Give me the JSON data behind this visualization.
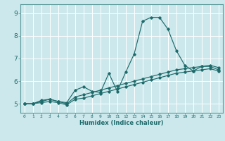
{
  "title": "",
  "xlabel": "Humidex (Indice chaleur)",
  "ylabel": "",
  "xlim": [
    -0.5,
    23.5
  ],
  "ylim": [
    4.6,
    9.4
  ],
  "bg_color": "#cce8ec",
  "grid_color": "#ffffff",
  "line_color": "#1e6b6b",
  "yticks": [
    5,
    6,
    7,
    8,
    9
  ],
  "xticks": [
    0,
    1,
    2,
    3,
    4,
    5,
    6,
    7,
    8,
    9,
    10,
    11,
    12,
    13,
    14,
    15,
    16,
    17,
    18,
    19,
    20,
    21,
    22,
    23
  ],
  "line1_x": [
    0,
    1,
    2,
    3,
    4,
    5,
    6,
    7,
    8,
    9,
    10,
    11,
    12,
    13,
    14,
    15,
    16,
    17,
    18,
    19,
    20,
    21,
    22,
    23
  ],
  "line1_y": [
    5.0,
    5.0,
    5.15,
    5.2,
    5.1,
    5.05,
    5.6,
    5.75,
    5.55,
    5.5,
    6.35,
    5.55,
    6.4,
    7.2,
    8.65,
    8.82,
    8.82,
    8.3,
    7.35,
    6.7,
    6.45,
    6.65,
    6.65,
    6.5
  ],
  "line2_x": [
    0,
    1,
    2,
    3,
    4,
    5,
    6,
    7,
    8,
    9,
    10,
    11,
    12,
    13,
    14,
    15,
    16,
    17,
    18,
    19,
    20,
    21,
    22,
    23
  ],
  "line2_y": [
    5.0,
    5.0,
    5.1,
    5.2,
    5.1,
    5.0,
    5.3,
    5.4,
    5.5,
    5.6,
    5.7,
    5.8,
    5.9,
    6.0,
    6.1,
    6.2,
    6.3,
    6.4,
    6.5,
    6.55,
    6.6,
    6.65,
    6.7,
    6.6
  ],
  "line3_x": [
    0,
    1,
    2,
    3,
    4,
    5,
    6,
    7,
    8,
    9,
    10,
    11,
    12,
    13,
    14,
    15,
    16,
    17,
    18,
    19,
    20,
    21,
    22,
    23
  ],
  "line3_y": [
    5.0,
    5.0,
    5.05,
    5.1,
    5.05,
    4.95,
    5.2,
    5.25,
    5.35,
    5.45,
    5.55,
    5.65,
    5.75,
    5.85,
    5.95,
    6.05,
    6.15,
    6.25,
    6.35,
    6.4,
    6.45,
    6.5,
    6.55,
    6.45
  ]
}
